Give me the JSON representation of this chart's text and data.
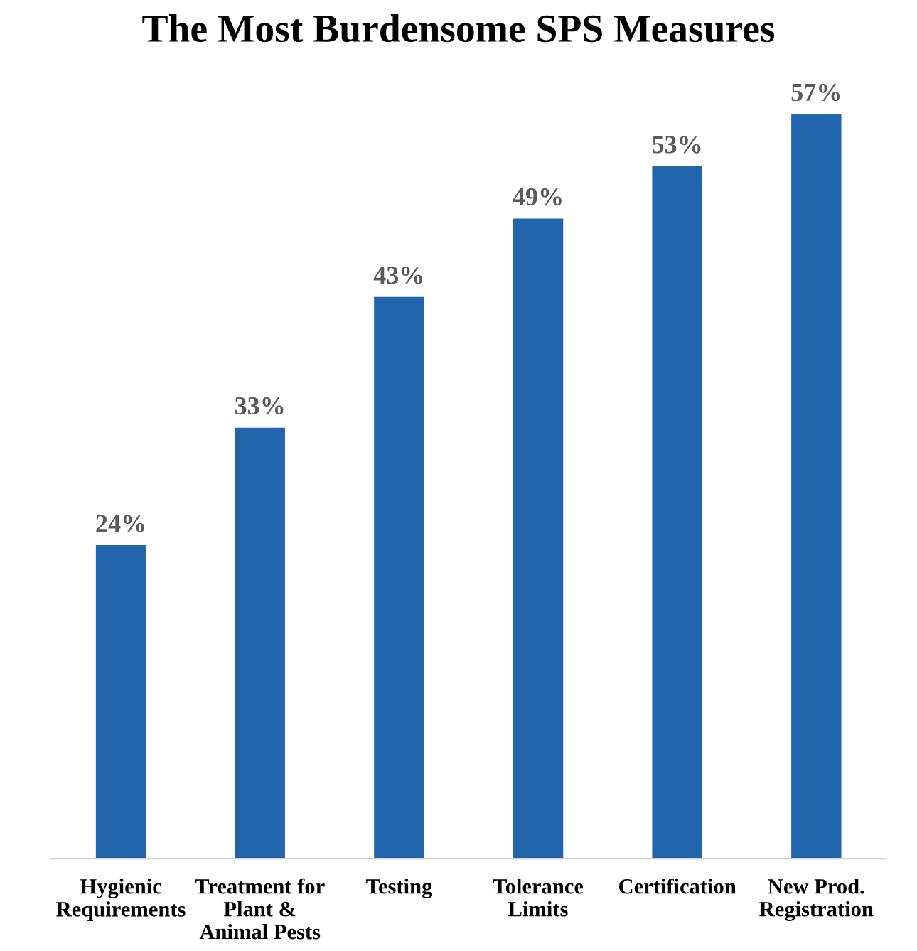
{
  "chart_data": {
    "type": "bar",
    "title": "The Most Burdensome SPS Measures",
    "categories": [
      "Hygienic\nRequirements",
      "Treatment for\nPlant &\nAnimal Pests",
      "Testing",
      "Tolerance\nLimits",
      "Certification",
      "New Prod.\nRegistration"
    ],
    "values": [
      24,
      33,
      43,
      49,
      53,
      57
    ],
    "value_labels": [
      "24%",
      "33%",
      "43%",
      "49%",
      "53%",
      "57%"
    ],
    "color": "#2265ad",
    "grid": false,
    "legend": false
  }
}
